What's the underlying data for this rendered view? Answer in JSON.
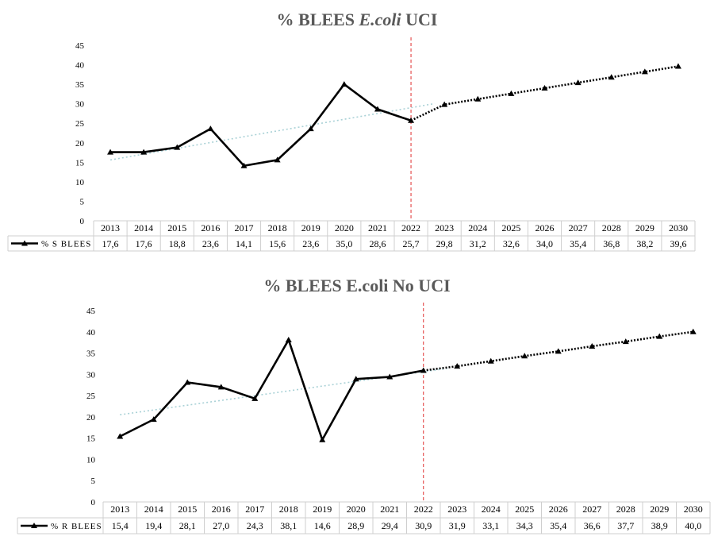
{
  "chart_data": [
    {
      "type": "line",
      "title_parts": [
        "%  BLEES ",
        "E.coli",
        " UCI"
      ],
      "categories": [
        "2013",
        "2014",
        "2015",
        "2016",
        "2017",
        "2018",
        "2019",
        "2020",
        "2021",
        "2022",
        "2023",
        "2024",
        "2025",
        "2026",
        "2027",
        "2028",
        "2029",
        "2030"
      ],
      "table_values": [
        "17,6",
        "17,6",
        "18,8",
        "23,6",
        "14,1",
        "15,6",
        "23,6",
        "35,0",
        "28,6",
        "25,7",
        "29,8",
        "31,2",
        "32,6",
        "34,0",
        "35,4",
        "36,8",
        "38,2",
        "39,6"
      ],
      "series": [
        {
          "name": "% S BLEES",
          "values": [
            17.6,
            17.6,
            18.8,
            23.6,
            14.1,
            15.6,
            23.6,
            35.0,
            28.6,
            25.7,
            29.8,
            31.2,
            32.6,
            34.0,
            35.4,
            36.8,
            38.2,
            39.6
          ]
        }
      ],
      "observed_through": "2022",
      "trendline": {
        "from": [
          "2013",
          15.6
        ],
        "to": [
          "2022",
          29.0
        ]
      },
      "yticks": [
        "0",
        "5",
        "10",
        "15",
        "20",
        "25",
        "30",
        "35",
        "40",
        "45"
      ],
      "ylim": [
        0,
        45
      ],
      "grid": false,
      "legend": "data-table-left"
    },
    {
      "type": "line",
      "title_parts": [
        "% BLEES E.coli No UCI"
      ],
      "categories": [
        "2013",
        "2014",
        "2015",
        "2016",
        "2017",
        "2018",
        "2019",
        "2020",
        "2021",
        "2022",
        "2023",
        "2024",
        "2025",
        "2026",
        "2027",
        "2028",
        "2029",
        "2030"
      ],
      "table_values": [
        "15,4",
        "19,4",
        "28,1",
        "27,0",
        "24,3",
        "38,1",
        "14,6",
        "28,9",
        "29,4",
        "30,9",
        "31,9",
        "33,1",
        "34,3",
        "35,4",
        "36,6",
        "37,7",
        "38,9",
        "40,0"
      ],
      "series": [
        {
          "name": "% R BLEES",
          "values": [
            15.4,
            19.4,
            28.1,
            27.0,
            24.3,
            38.1,
            14.6,
            28.9,
            29.4,
            30.9,
            31.9,
            33.1,
            34.3,
            35.4,
            36.6,
            37.7,
            38.9,
            40.0
          ]
        }
      ],
      "observed_through": "2022",
      "trendline": {
        "from": [
          "2013",
          20.5
        ],
        "to": [
          "2022",
          30.6
        ]
      },
      "yticks": [
        "0",
        "5",
        "10",
        "15",
        "20",
        "25",
        "30",
        "35",
        "40",
        "45"
      ],
      "ylim": [
        0,
        45
      ],
      "grid": false,
      "legend": "data-table-left"
    }
  ],
  "colors": {
    "line": "#000000",
    "trend": "#a9d1d6",
    "divider": "#e03030",
    "table_border": "#cfcfcf",
    "title": "#595959"
  }
}
